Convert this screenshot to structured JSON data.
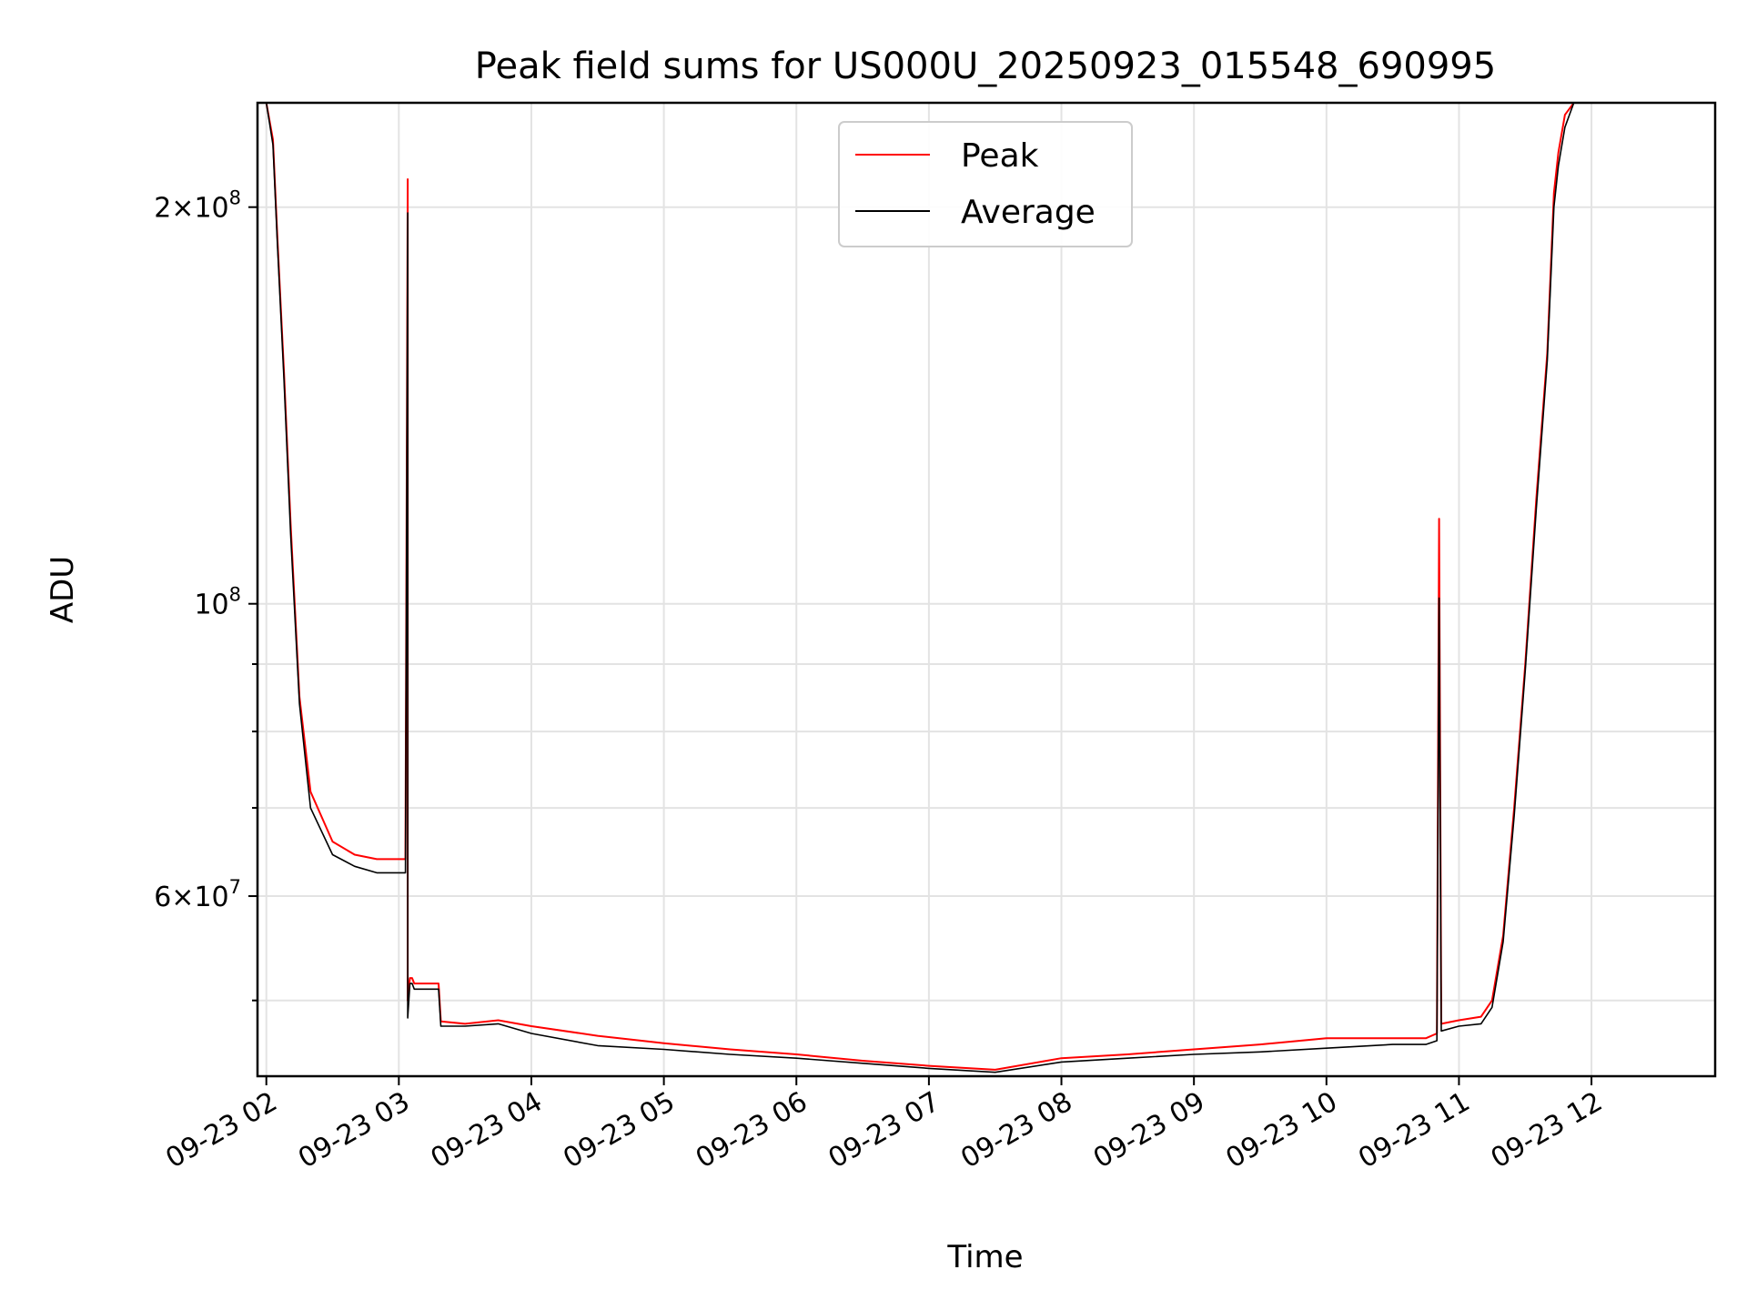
{
  "chart_data": {
    "type": "line",
    "title": "Peak field sums for US000U_20250923_015548_690995",
    "xlabel": "Time",
    "ylabel": "ADU",
    "y_scale": "log",
    "ylim": [
      43800000,
      240000000
    ],
    "xlim": [
      "2025-09-23 01:56",
      "2025-09-23 12:56"
    ],
    "grid": true,
    "legend_position": "upper center",
    "x_tick_labels": [
      "09-23 02",
      "09-23 03",
      "09-23 04",
      "09-23 05",
      "09-23 06",
      "09-23 07",
      "09-23 08",
      "09-23 09",
      "09-23 10",
      "09-23 11",
      "09-23 12"
    ],
    "x_ticks": [
      "2025-09-23 02:00",
      "2025-09-23 03:00",
      "2025-09-23 04:00",
      "2025-09-23 05:00",
      "2025-09-23 06:00",
      "2025-09-23 07:00",
      "2025-09-23 08:00",
      "2025-09-23 09:00",
      "2025-09-23 10:00",
      "2025-09-23 11:00",
      "2025-09-23 12:00"
    ],
    "y_ticks": [
      {
        "value": 200000000,
        "mantissa": "2",
        "exponent": "8"
      },
      {
        "value": 100000000,
        "mantissa": "",
        "exponent": "8"
      },
      {
        "value": 60000000,
        "mantissa": "6",
        "exponent": "7"
      }
    ],
    "y_minor_ticks": [
      50000000,
      70000000,
      80000000,
      90000000
    ],
    "series": [
      {
        "name": "Peak",
        "color": "#ff0000",
        "x": [
          "2025-09-23 01:56",
          "2025-09-23 02:00",
          "2025-09-23 02:03",
          "2025-09-23 02:05",
          "2025-09-23 02:08",
          "2025-09-23 02:11",
          "2025-09-23 02:15",
          "2025-09-23 02:20",
          "2025-09-23 02:30",
          "2025-09-23 02:40",
          "2025-09-23 02:50",
          "2025-09-23 03:03",
          "2025-09-23 03:04",
          "2025-09-23 03:04",
          "2025-09-23 03:05",
          "2025-09-23 03:06",
          "2025-09-23 03:07",
          "2025-09-23 03:10",
          "2025-09-23 03:18",
          "2025-09-23 03:19",
          "2025-09-23 03:30",
          "2025-09-23 03:45",
          "2025-09-23 04:00",
          "2025-09-23 04:30",
          "2025-09-23 05:00",
          "2025-09-23 05:30",
          "2025-09-23 06:00",
          "2025-09-23 06:30",
          "2025-09-23 07:00",
          "2025-09-23 07:30",
          "2025-09-23 08:00",
          "2025-09-23 08:30",
          "2025-09-23 09:00",
          "2025-09-23 09:30",
          "2025-09-23 10:00",
          "2025-09-23 10:30",
          "2025-09-23 10:45",
          "2025-09-23 10:50",
          "2025-09-23 10:51",
          "2025-09-23 10:52",
          "2025-09-23 11:00",
          "2025-09-23 11:10",
          "2025-09-23 11:15",
          "2025-09-23 11:20",
          "2025-09-23 11:25",
          "2025-09-23 11:30",
          "2025-09-23 11:35",
          "2025-09-23 11:40",
          "2025-09-23 11:43",
          "2025-09-23 11:45",
          "2025-09-23 11:48",
          "2025-09-23 11:52",
          "2025-09-23 12:56"
        ],
        "y": [
          240000000,
          240000000,
          225000000,
          190000000,
          150000000,
          115000000,
          85000000,
          72000000,
          66000000,
          64500000,
          64000000,
          64000000,
          210000000,
          50000000,
          52000000,
          52000000,
          51500000,
          51500000,
          51500000,
          48200000,
          48000000,
          48300000,
          47800000,
          47000000,
          46400000,
          45900000,
          45500000,
          45000000,
          44600000,
          44300000,
          45200000,
          45500000,
          45900000,
          46300000,
          46800000,
          46800000,
          46800000,
          47200000,
          116000000,
          48000000,
          48300000,
          48600000,
          50000000,
          56000000,
          70000000,
          90000000,
          120000000,
          155000000,
          205000000,
          220000000,
          235000000,
          240000000,
          240000000
        ]
      },
      {
        "name": "Average",
        "color": "#000000",
        "x": [
          "2025-09-23 01:56",
          "2025-09-23 02:00",
          "2025-09-23 02:03",
          "2025-09-23 02:05",
          "2025-09-23 02:08",
          "2025-09-23 02:11",
          "2025-09-23 02:15",
          "2025-09-23 02:20",
          "2025-09-23 02:30",
          "2025-09-23 02:40",
          "2025-09-23 02:50",
          "2025-09-23 03:03",
          "2025-09-23 03:04",
          "2025-09-23 03:04",
          "2025-09-23 03:05",
          "2025-09-23 03:06",
          "2025-09-23 03:07",
          "2025-09-23 03:10",
          "2025-09-23 03:18",
          "2025-09-23 03:19",
          "2025-09-23 03:30",
          "2025-09-23 03:45",
          "2025-09-23 04:00",
          "2025-09-23 04:30",
          "2025-09-23 05:00",
          "2025-09-23 05:30",
          "2025-09-23 06:00",
          "2025-09-23 06:30",
          "2025-09-23 07:00",
          "2025-09-23 07:30",
          "2025-09-23 08:00",
          "2025-09-23 08:30",
          "2025-09-23 09:00",
          "2025-09-23 09:30",
          "2025-09-23 10:00",
          "2025-09-23 10:30",
          "2025-09-23 10:45",
          "2025-09-23 10:50",
          "2025-09-23 10:51",
          "2025-09-23 10:52",
          "2025-09-23 11:00",
          "2025-09-23 11:10",
          "2025-09-23 11:15",
          "2025-09-23 11:20",
          "2025-09-23 11:25",
          "2025-09-23 11:30",
          "2025-09-23 11:35",
          "2025-09-23 11:40",
          "2025-09-23 11:43",
          "2025-09-23 11:45",
          "2025-09-23 11:48",
          "2025-09-23 11:52",
          "2025-09-23 12:56"
        ],
        "y": [
          240000000,
          240000000,
          223000000,
          188000000,
          148000000,
          113000000,
          84000000,
          70000000,
          64500000,
          63200000,
          62500000,
          62500000,
          198000000,
          48500000,
          51500000,
          51500000,
          51000000,
          51000000,
          51000000,
          47800000,
          47800000,
          48000000,
          47200000,
          46200000,
          45900000,
          45500000,
          45200000,
          44800000,
          44400000,
          44100000,
          44900000,
          45200000,
          45500000,
          45700000,
          46000000,
          46300000,
          46300000,
          46600000,
          101000000,
          47400000,
          47800000,
          48000000,
          49400000,
          55400000,
          69000000,
          89000000,
          118000000,
          153000000,
          200000000,
          215000000,
          230000000,
          240000000,
          240000000
        ]
      }
    ]
  }
}
